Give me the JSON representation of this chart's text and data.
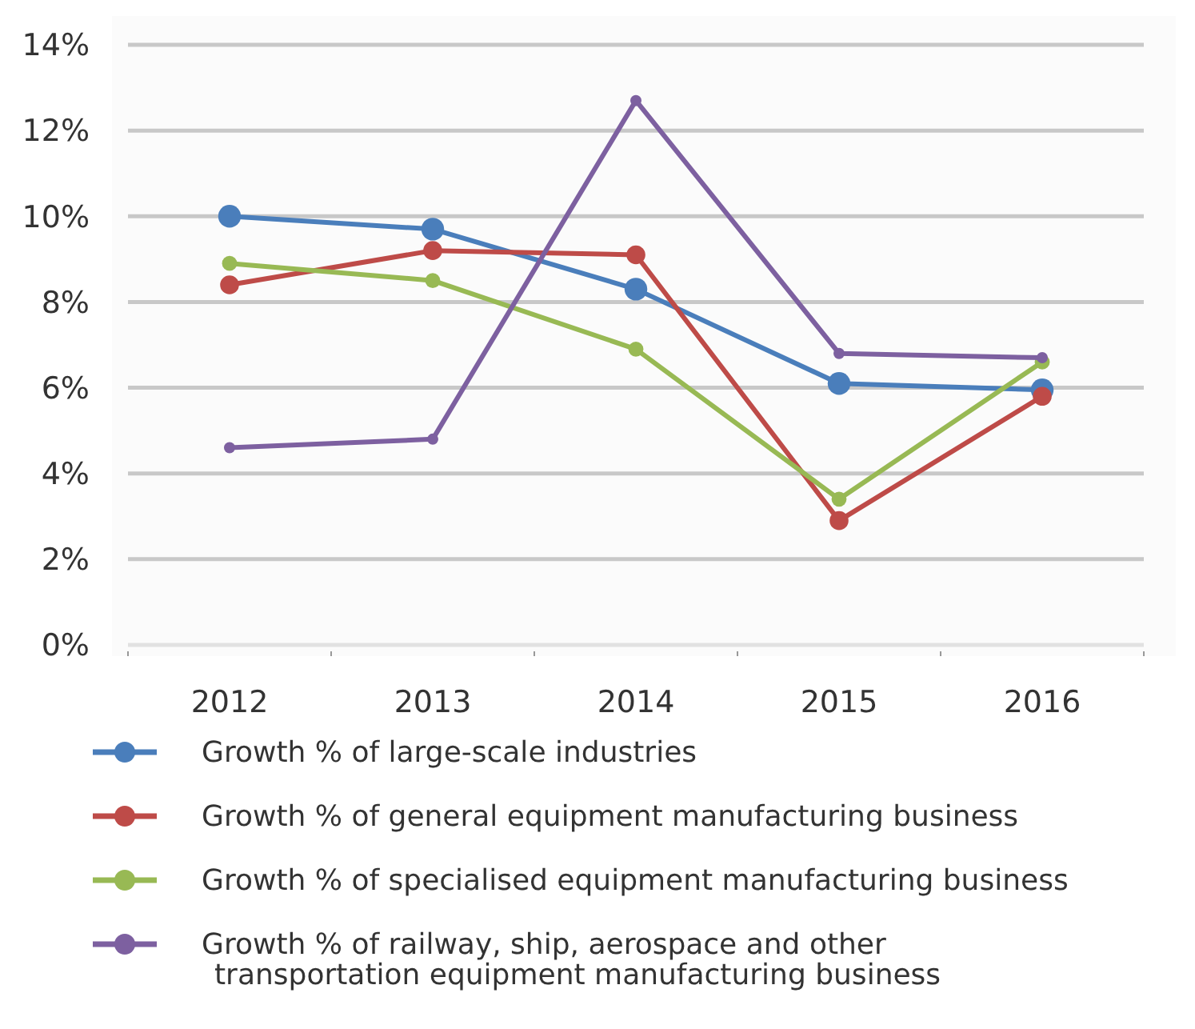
{
  "chart_data": {
    "type": "line",
    "categories": [
      "2012",
      "2013",
      "2014",
      "2015",
      "2016"
    ],
    "ylim": [
      0,
      0.14
    ],
    "yticks": [
      {
        "value": 0,
        "label": "0%"
      },
      {
        "value": 0.02,
        "label": "2%"
      },
      {
        "value": 0.04,
        "label": "4%"
      },
      {
        "value": 0.06,
        "label": "6%"
      },
      {
        "value": 0.08,
        "label": "8%"
      },
      {
        "value": 0.1,
        "label": "10%"
      },
      {
        "value": 0.12,
        "label": "12%"
      },
      {
        "value": 0.14,
        "label": "14%"
      }
    ],
    "grid": "y",
    "legend": "bottom",
    "marker": "circle",
    "line_style": "solid",
    "series": [
      {
        "name": "Growth % of large-scale industries",
        "color": "#4a7ebb",
        "values": [
          0.1,
          0.097,
          0.083,
          0.061,
          0.0595
        ]
      },
      {
        "name": "Growth % of general equipment manufacturing business",
        "color": "#be4b48",
        "values": [
          0.084,
          0.092,
          0.091,
          0.029,
          0.058
        ]
      },
      {
        "name": "Growth % of specialised equipment manufacturing business",
        "color": "#98b954",
        "values": [
          0.089,
          0.085,
          0.069,
          0.034,
          0.066
        ]
      },
      {
        "name": "Growth % of railway, ship, aerospace and other transportation equipment manufacturing business",
        "color": "#7d60a0",
        "values": [
          0.046,
          0.048,
          0.127,
          0.068,
          0.067
        ]
      }
    ]
  }
}
